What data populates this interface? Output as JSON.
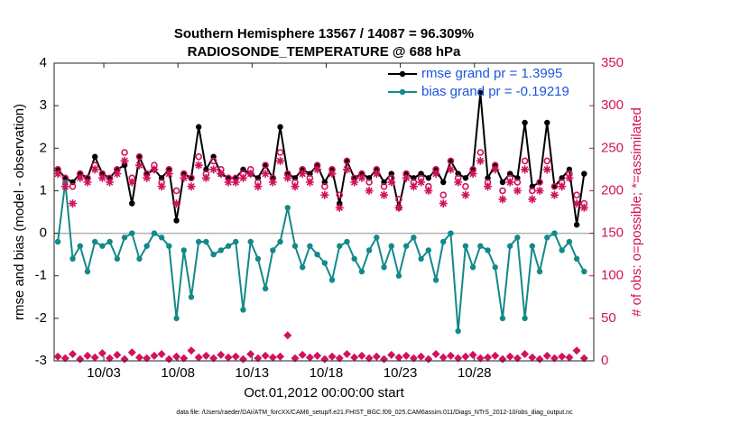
{
  "chart_data": {
    "type": "line",
    "title": "Southern Hemisphere 13567 / 14087 = 96.309%",
    "subtitle": "RADIOSONDE_TEMPERATURE @ 688 hPa",
    "xlabel": "Oct.01,2012 00:00:00 start",
    "ylabel": "rmse and bias (model - observation)",
    "y2label": "# of obs: o=possible; *=assimilated",
    "footnote": "data file: /Users/raeder/DAI/ATM_forcXX/CAM6_setup/f.e21.FHIST_BGC.f09_025.CAM6assim.011/Diags_NTrS_2012-10/obs_diag_output.nc",
    "xlim": [
      0,
      36.4
    ],
    "xticks": [
      {
        "value": 3.35,
        "label": "10/03"
      },
      {
        "value": 8.35,
        "label": "10/08"
      },
      {
        "value": 13.35,
        "label": "10/13"
      },
      {
        "value": 18.35,
        "label": "10/18"
      },
      {
        "value": 23.35,
        "label": "10/23"
      },
      {
        "value": 28.35,
        "label": "10/28"
      }
    ],
    "ylim": [
      -3,
      4
    ],
    "yticks": [
      -3,
      -2,
      -1,
      0,
      1,
      2,
      3,
      4
    ],
    "y2lim": [
      0,
      350
    ],
    "y2ticks": [
      0,
      50,
      100,
      150,
      200,
      250,
      300,
      350
    ],
    "legend": "upper right",
    "x": [
      0.25,
      0.75,
      1.25,
      1.75,
      2.25,
      2.75,
      3.25,
      3.75,
      4.25,
      4.75,
      5.25,
      5.75,
      6.25,
      6.75,
      7.25,
      7.75,
      8.25,
      8.75,
      9.25,
      9.75,
      10.25,
      10.75,
      11.25,
      11.75,
      12.25,
      12.75,
      13.25,
      13.75,
      14.25,
      14.75,
      15.25,
      15.75,
      16.25,
      16.75,
      17.25,
      17.75,
      18.25,
      18.75,
      19.25,
      19.75,
      20.25,
      20.75,
      21.25,
      21.75,
      22.25,
      22.75,
      23.25,
      23.75,
      24.25,
      24.75,
      25.25,
      25.75,
      26.25,
      26.75,
      27.25,
      27.75,
      28.25,
      28.75,
      29.25,
      29.75,
      30.25,
      30.75,
      31.25,
      31.75,
      32.25,
      32.75,
      33.25,
      33.75,
      34.25,
      34.75,
      35.25,
      35.75
    ],
    "series": [
      {
        "name": "rmse grand pr = 1.3995",
        "color": "#000000",
        "marker": "dot",
        "axis": "y",
        "values": [
          1.5,
          1.3,
          1.2,
          1.4,
          1.3,
          1.8,
          1.4,
          1.3,
          1.5,
          1.6,
          0.7,
          1.8,
          1.4,
          1.5,
          1.3,
          1.5,
          0.3,
          1.4,
          1.3,
          2.5,
          1.5,
          1.8,
          1.4,
          1.3,
          1.3,
          1.5,
          1.4,
          1.3,
          1.6,
          1.3,
          2.5,
          1.4,
          1.3,
          1.5,
          1.4,
          1.6,
          1.2,
          1.5,
          0.7,
          1.7,
          1.3,
          1.4,
          1.3,
          1.5,
          1.2,
          1.4,
          0.6,
          1.4,
          1.3,
          1.4,
          1.3,
          1.5,
          1.2,
          1.7,
          1.4,
          1.3,
          1.5,
          3.3,
          1.3,
          1.6,
          1.2,
          1.4,
          1.3,
          2.6,
          1.1,
          1.2,
          2.6,
          1.1,
          1.3,
          1.5,
          0.2,
          1.4
        ]
      },
      {
        "name": "bias grand pr = -0.19219",
        "color": "#13898a",
        "marker": "dot",
        "axis": "y",
        "values": [
          -0.2,
          1.2,
          -0.6,
          -0.3,
          -0.9,
          -0.2,
          -0.3,
          -0.2,
          -0.6,
          -0.1,
          0,
          -0.6,
          -0.3,
          0,
          -0.1,
          -0.3,
          -2.0,
          -0.4,
          -1.5,
          -0.2,
          -0.2,
          -0.5,
          -0.4,
          -0.3,
          -0.2,
          -1.8,
          -0.2,
          -0.6,
          -1.3,
          -0.4,
          -0.2,
          0.6,
          -0.3,
          -0.8,
          -0.3,
          -0.5,
          -0.7,
          -1.1,
          -0.3,
          -0.2,
          -0.6,
          -0.9,
          -0.4,
          -0.1,
          -0.8,
          -0.3,
          -1.0,
          -0.3,
          -0.1,
          -0.6,
          -0.4,
          -1.1,
          -0.2,
          0,
          -2.3,
          -0.3,
          -0.8,
          -0.3,
          -0.4,
          -0.8,
          -2.0,
          -0.3,
          -0.1,
          -2.0,
          -0.3,
          -0.9,
          -0.1,
          0,
          -0.4,
          -0.2,
          -0.6,
          -0.9
        ]
      },
      {
        "color": "#d2125c",
        "marker": "circle",
        "axis": "y2",
        "values": [
          225,
          215,
          205,
          220,
          215,
          230,
          220,
          215,
          225,
          245,
          215,
          240,
          220,
          230,
          210,
          225,
          200,
          220,
          215,
          240,
          220,
          235,
          225,
          215,
          215,
          220,
          225,
          210,
          230,
          215,
          245,
          220,
          210,
          225,
          215,
          230,
          205,
          225,
          195,
          235,
          215,
          220,
          210,
          225,
          205,
          215,
          190,
          220,
          210,
          215,
          205,
          225,
          195,
          235,
          215,
          205,
          225,
          245,
          210,
          230,
          200,
          215,
          210,
          235,
          200,
          210,
          235,
          205,
          210,
          220,
          195,
          185
        ]
      },
      {
        "color": "#d2125c",
        "marker": "star",
        "axis": "y2",
        "values": [
          220,
          205,
          185,
          215,
          210,
          225,
          215,
          210,
          220,
          235,
          210,
          230,
          215,
          225,
          205,
          220,
          185,
          215,
          205,
          230,
          215,
          225,
          220,
          210,
          210,
          215,
          220,
          205,
          220,
          210,
          235,
          215,
          205,
          220,
          210,
          225,
          195,
          220,
          180,
          225,
          210,
          215,
          200,
          220,
          195,
          210,
          180,
          215,
          205,
          210,
          200,
          220,
          185,
          225,
          210,
          195,
          220,
          235,
          205,
          225,
          190,
          210,
          200,
          225,
          190,
          200,
          225,
          195,
          205,
          215,
          185,
          180
        ]
      },
      {
        "color": "#d2125c",
        "marker": "diamond",
        "axis": "y2",
        "values": [
          5,
          3,
          8,
          2,
          6,
          4,
          9,
          3,
          7,
          2,
          10,
          4,
          3,
          6,
          8,
          2,
          5,
          3,
          12,
          4,
          6,
          3,
          7,
          4,
          5,
          2,
          8,
          3,
          6,
          4,
          5,
          30,
          3,
          7,
          4,
          6,
          2,
          5,
          3,
          8,
          4,
          6,
          3,
          5,
          2,
          7,
          4,
          6,
          3,
          5,
          2,
          8,
          4,
          6,
          3,
          5,
          7,
          3,
          4,
          6,
          2,
          5,
          3,
          8,
          4,
          2,
          6,
          3,
          5,
          4,
          12,
          3
        ]
      }
    ]
  }
}
